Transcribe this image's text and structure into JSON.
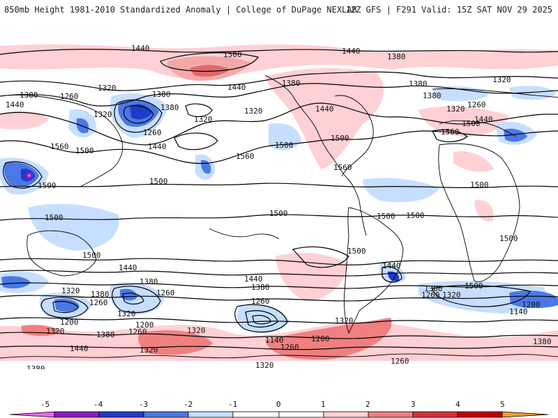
{
  "header": {
    "title": "850mb Height 1981-2010 Standardized Anomaly | College of DuPage NEXLAB",
    "run_info": "12Z GFS | F291 Valid: 15Z SAT NOV 29 2025"
  },
  "contour_labels": [
    {
      "id": "c1",
      "text": "1440"
    },
    {
      "id": "c2",
      "text": "1500"
    },
    {
      "id": "c3",
      "text": "1440"
    },
    {
      "id": "c4",
      "text": "1380"
    },
    {
      "id": "c5",
      "text": "1380"
    },
    {
      "id": "c6",
      "text": "1260"
    },
    {
      "id": "c7",
      "text": "1320"
    },
    {
      "id": "c8",
      "text": "1440"
    },
    {
      "id": "c9",
      "text": "1380"
    },
    {
      "id": "c10",
      "text": "1380"
    },
    {
      "id": "c11",
      "text": "1320"
    },
    {
      "id": "c12",
      "text": "1440"
    },
    {
      "id": "c13",
      "text": "1320"
    },
    {
      "id": "c14",
      "text": "1260"
    },
    {
      "id": "c15",
      "text": "1500"
    },
    {
      "id": "c16",
      "text": "1560"
    },
    {
      "id": "c17",
      "text": "1440"
    },
    {
      "id": "c18",
      "text": "1500"
    },
    {
      "id": "c19",
      "text": "1560"
    },
    {
      "id": "c20",
      "text": "1500"
    },
    {
      "id": "c21",
      "text": "1500"
    },
    {
      "id": "c22",
      "text": "1500"
    },
    {
      "id": "c23",
      "text": "1500"
    },
    {
      "id": "c24",
      "text": "1320"
    },
    {
      "id": "c25",
      "text": "1380"
    },
    {
      "id": "c26",
      "text": "1440"
    },
    {
      "id": "c27",
      "text": "1380"
    },
    {
      "id": "c28",
      "text": "1320"
    },
    {
      "id": "c29",
      "text": "1380"
    },
    {
      "id": "c30",
      "text": "1320"
    },
    {
      "id": "c31",
      "text": "1260"
    },
    {
      "id": "c32",
      "text": "1560"
    },
    {
      "id": "c33",
      "text": "1440"
    },
    {
      "id": "c34",
      "text": "1500"
    },
    {
      "id": "c35",
      "text": "1500"
    },
    {
      "id": "c36",
      "text": "1500"
    },
    {
      "id": "c37",
      "text": "1500"
    },
    {
      "id": "c38",
      "text": "1560"
    },
    {
      "id": "c39",
      "text": "1500"
    },
    {
      "id": "c40",
      "text": "1440"
    },
    {
      "id": "c41",
      "text": "1380"
    },
    {
      "id": "c42",
      "text": "1320"
    },
    {
      "id": "c43",
      "text": "1380"
    },
    {
      "id": "c44",
      "text": "1260"
    },
    {
      "id": "c45",
      "text": "1200"
    },
    {
      "id": "c46",
      "text": "1320"
    },
    {
      "id": "c47",
      "text": "1260"
    },
    {
      "id": "c48",
      "text": "1200"
    },
    {
      "id": "c49",
      "text": "1260"
    },
    {
      "id": "c50",
      "text": "1320"
    },
    {
      "id": "c51",
      "text": "1380"
    },
    {
      "id": "c52",
      "text": "1320"
    },
    {
      "id": "c53",
      "text": "1440"
    },
    {
      "id": "c54",
      "text": "1380"
    },
    {
      "id": "c55",
      "text": "1440"
    },
    {
      "id": "c56",
      "text": "1380"
    },
    {
      "id": "c57",
      "text": "1260"
    },
    {
      "id": "c58",
      "text": "1320"
    },
    {
      "id": "c59",
      "text": "1140"
    },
    {
      "id": "c60",
      "text": "1200"
    },
    {
      "id": "c61",
      "text": "1260"
    },
    {
      "id": "c62",
      "text": "1320"
    },
    {
      "id": "c63",
      "text": "1440"
    },
    {
      "id": "c64",
      "text": "1500"
    },
    {
      "id": "c65",
      "text": "1380"
    },
    {
      "id": "c66",
      "text": "1260"
    },
    {
      "id": "c67",
      "text": "1320"
    },
    {
      "id": "c68",
      "text": "1200"
    },
    {
      "id": "c69",
      "text": "1140"
    },
    {
      "id": "c70",
      "text": "1380"
    },
    {
      "id": "c71",
      "text": "1260"
    },
    {
      "id": "c72",
      "text": "1320"
    },
    {
      "id": "c73",
      "text": "1500"
    },
    {
      "id": "c74",
      "text": "1500"
    },
    {
      "id": "c75",
      "text": "1500"
    }
  ],
  "colorbar": {
    "ticks": [
      "-5",
      "-4",
      "-3",
      "-2",
      "-1",
      "0",
      "1",
      "2",
      "3",
      "4",
      "5"
    ],
    "colors": {
      "m5": "#f060f0",
      "m4": "#8c1cc8",
      "m3": "#1e3cc8",
      "m2": "#4a78e6",
      "m1": "#c6deff",
      "p0": "#ffffff",
      "p1": "#ffd0d4",
      "p2": "#f08080",
      "p3": "#d43232",
      "p4": "#c00000",
      "p5": "#f0a020"
    }
  },
  "colors": {
    "contour": "#000000",
    "coast": "#000000",
    "background": "#ffffff"
  }
}
